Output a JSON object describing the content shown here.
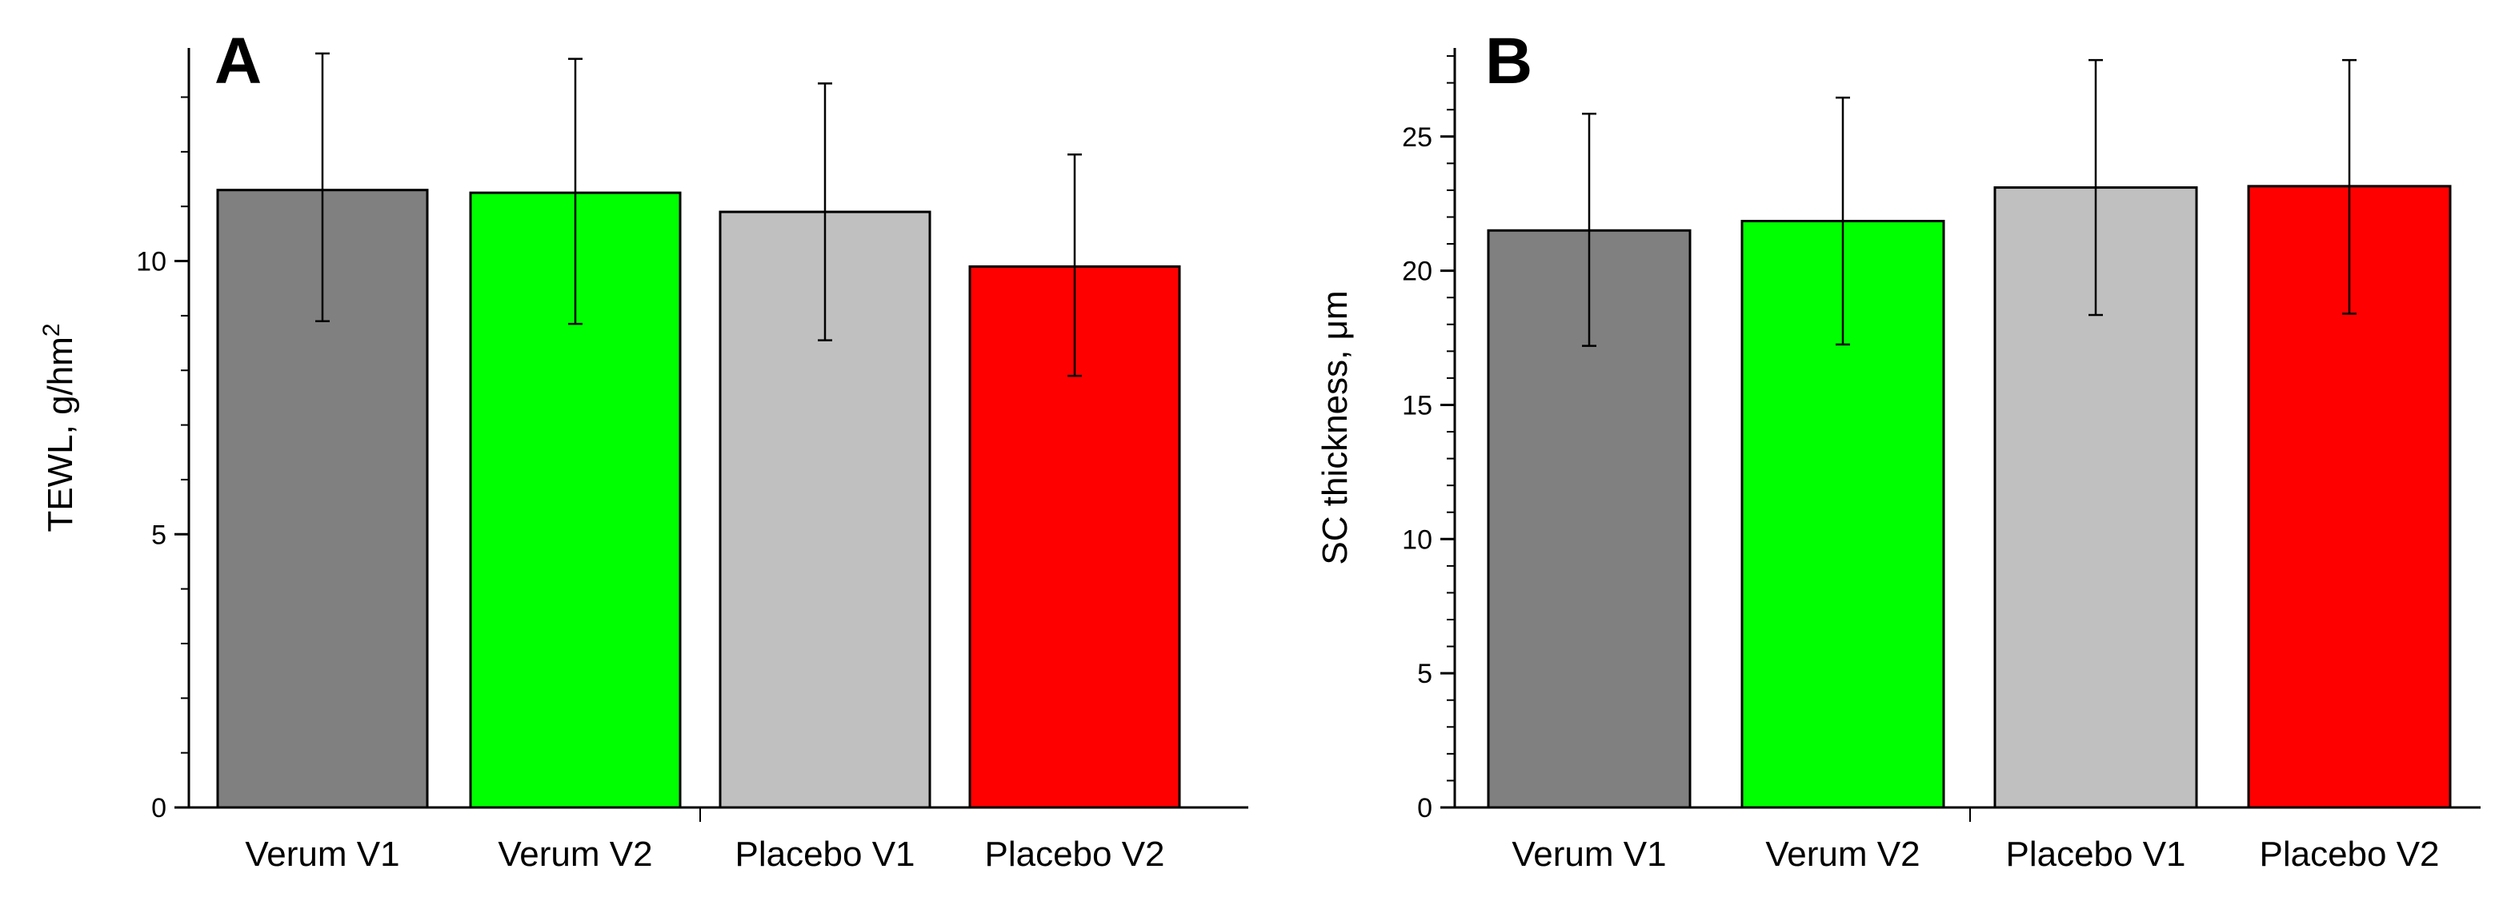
{
  "chart_data": [
    {
      "type": "bar",
      "panel_letter": "A",
      "categories": [
        "Verum V1",
        "Verum V2",
        "Placebo V1",
        "Placebo V2"
      ],
      "values": [
        11.3,
        11.25,
        10.9,
        9.9
      ],
      "error_bars": [
        {
          "low": 8.9,
          "high": 13.8
        },
        {
          "low": 8.85,
          "high": 13.7
        },
        {
          "low": 8.55,
          "high": 13.25
        },
        {
          "low": 7.9,
          "high": 11.95
        }
      ],
      "colors": [
        "#808080",
        "#00ff00",
        "#c0c0c0",
        "#ff0000"
      ],
      "ylabel": "TEWL, g/hm",
      "ylabel_superscript": "2",
      "ylim": [
        0,
        13.9
      ],
      "yticks": [
        0,
        5,
        10
      ],
      "ytick_labels": [
        "0",
        "5",
        "10"
      ],
      "minor_tick_step": 1
    },
    {
      "type": "bar",
      "panel_letter": "B",
      "categories": [
        "Verum V1",
        "Verum V2",
        "Placebo V1",
        "Placebo V2"
      ],
      "values": [
        21.5,
        21.85,
        23.1,
        23.15
      ],
      "error_bars": [
        {
          "low": 17.2,
          "high": 25.85
        },
        {
          "low": 17.25,
          "high": 26.45
        },
        {
          "low": 18.35,
          "high": 27.85
        },
        {
          "low": 18.4,
          "high": 27.85
        }
      ],
      "colors": [
        "#808080",
        "#00ff00",
        "#c0c0c0",
        "#ff0000"
      ],
      "ylabel": "SC thickness, μm",
      "ylim": [
        0,
        28.3
      ],
      "yticks": [
        0,
        5,
        10,
        15,
        20,
        25
      ],
      "ytick_labels": [
        "0",
        "5",
        "10",
        "15",
        "20",
        "25"
      ],
      "minor_tick_step": 1
    }
  ]
}
